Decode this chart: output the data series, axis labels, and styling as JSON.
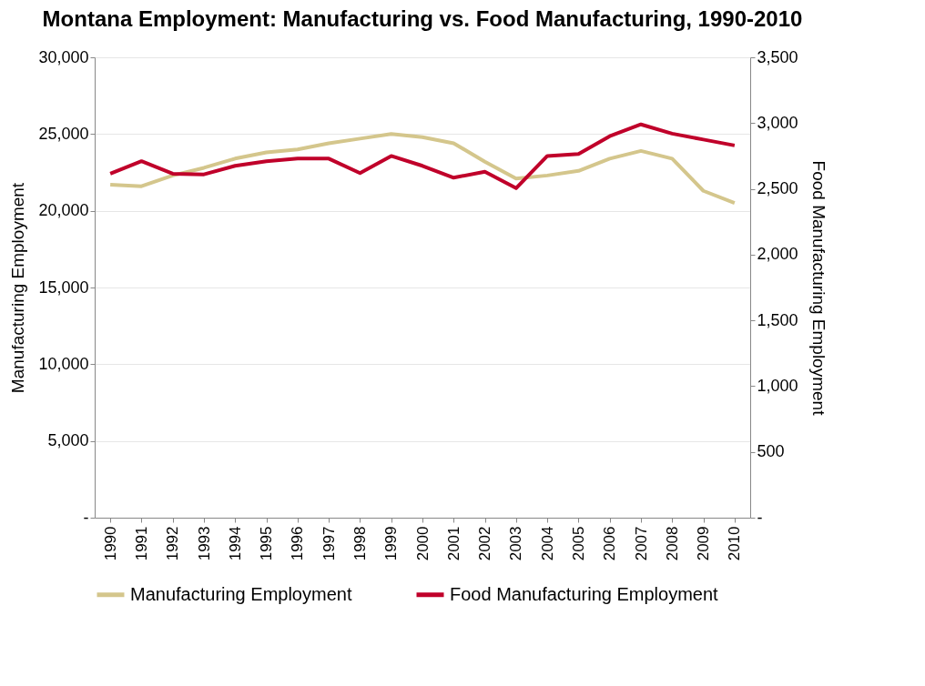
{
  "chart_data": {
    "type": "line",
    "title": "Montana Employment: Manufacturing vs. Food Manufacturing, 1990-2010",
    "ylabel": "Manufacturing Employment",
    "y2label": "Food Manufacturing Employment",
    "categories": [
      "1990",
      "1991",
      "1992",
      "1993",
      "1994",
      "1995",
      "1996",
      "1997",
      "1998",
      "1999",
      "2000",
      "2001",
      "2002",
      "2003",
      "2004",
      "2005",
      "2006",
      "2007",
      "2008",
      "2009",
      "2010"
    ],
    "series": [
      {
        "name": "Manufacturing Employment",
        "color": "#d4c68c",
        "values": [
          21700,
          21600,
          22300,
          22800,
          23400,
          23800,
          24000,
          24400,
          24700,
          25000,
          24800,
          24400,
          23200,
          22100,
          22300,
          22600,
          23400,
          23900,
          23400,
          21300,
          20500
        ]
      },
      {
        "name": "Food Manufacturing Employment",
        "color": "#c0002a",
        "axis": "y2",
        "values": [
          2615,
          2710,
          2615,
          2610,
          2675,
          2710,
          2730,
          2730,
          2620,
          2750,
          2675,
          2585,
          2630,
          2505,
          2750,
          2765,
          2900,
          2990,
          2920,
          2875,
          2830
        ]
      }
    ],
    "ylim": [
      0,
      30000
    ],
    "yticks": [
      {
        "value": 0,
        "label": "-"
      },
      {
        "value": 5000,
        "label": "5,000"
      },
      {
        "value": 10000,
        "label": "10,000"
      },
      {
        "value": 15000,
        "label": "15,000"
      },
      {
        "value": 20000,
        "label": "20,000"
      },
      {
        "value": 25000,
        "label": "25,000"
      },
      {
        "value": 30000,
        "label": "30,000"
      }
    ],
    "y2lim": [
      0,
      3500
    ],
    "y2ticks": [
      {
        "value": 0,
        "label": "-"
      },
      500,
      {
        "value": 1000,
        "label": "1,000"
      },
      {
        "value": 1500,
        "label": "1,500"
      },
      {
        "value": 2000,
        "label": "2,000"
      },
      {
        "value": 2500,
        "label": "2,500"
      },
      {
        "value": 3000,
        "label": "3,000"
      },
      {
        "value": 3500,
        "label": "3,500"
      }
    ],
    "grid": "y",
    "legend": "bottom"
  }
}
